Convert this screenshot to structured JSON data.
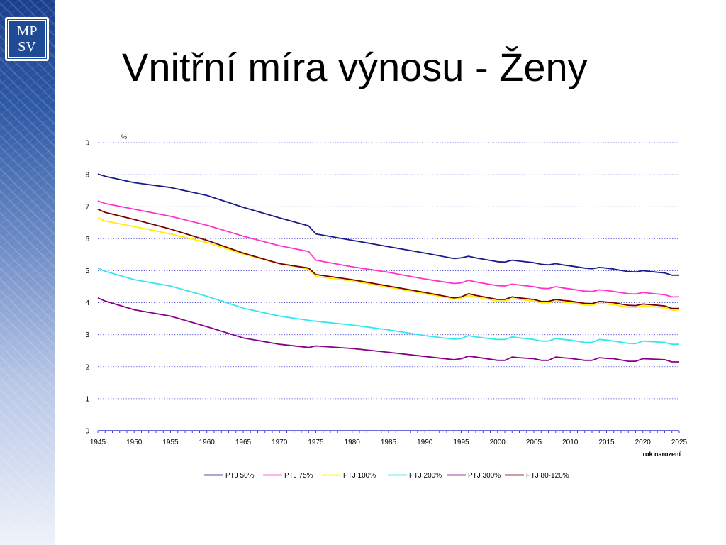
{
  "slide": {
    "title": "Vnitřní míra výnosu - Ženy",
    "logo": {
      "line1": "MP",
      "line2": "SV"
    }
  },
  "colors": {
    "sidebar_dark": "#1b3f8c",
    "gridline": "#3b3bd1"
  },
  "chart_data": {
    "type": "line",
    "ylabel": "%",
    "xlabel": "rok narození",
    "ylim": [
      0,
      9
    ],
    "yticks": [
      0,
      1,
      2,
      3,
      4,
      5,
      6,
      7,
      8,
      9
    ],
    "xlim": [
      1945,
      2025
    ],
    "xticks": [
      1945,
      1950,
      1955,
      1960,
      1965,
      1970,
      1975,
      1980,
      1985,
      1990,
      1995,
      2000,
      2005,
      2010,
      2015,
      2020,
      2025
    ],
    "grid": "horizontal-dotted",
    "legend_position": "bottom",
    "series": [
      {
        "name": "PTJ 50%",
        "color": "#1a1a8a",
        "points": [
          [
            1945,
            8.02
          ],
          [
            1946,
            7.95
          ],
          [
            1950,
            7.75
          ],
          [
            1955,
            7.6
          ],
          [
            1960,
            7.35
          ],
          [
            1965,
            6.98
          ],
          [
            1970,
            6.65
          ],
          [
            1974,
            6.4
          ],
          [
            1975,
            6.15
          ],
          [
            1980,
            5.95
          ],
          [
            1985,
            5.75
          ],
          [
            1990,
            5.55
          ],
          [
            1994,
            5.38
          ],
          [
            1995,
            5.4
          ],
          [
            1996,
            5.45
          ],
          [
            1997,
            5.4
          ],
          [
            2000,
            5.28
          ],
          [
            2001,
            5.27
          ],
          [
            2002,
            5.33
          ],
          [
            2003,
            5.3
          ],
          [
            2005,
            5.25
          ],
          [
            2006,
            5.2
          ],
          [
            2007,
            5.18
          ],
          [
            2008,
            5.22
          ],
          [
            2009,
            5.18
          ],
          [
            2010,
            5.15
          ],
          [
            2012,
            5.08
          ],
          [
            2013,
            5.06
          ],
          [
            2014,
            5.1
          ],
          [
            2015,
            5.08
          ],
          [
            2016,
            5.05
          ],
          [
            2018,
            4.97
          ],
          [
            2019,
            4.96
          ],
          [
            2020,
            5.0
          ],
          [
            2022,
            4.95
          ],
          [
            2023,
            4.93
          ],
          [
            2024,
            4.86
          ],
          [
            2025,
            4.86
          ]
        ]
      },
      {
        "name": "PTJ 75%",
        "color": "#ff33cc",
        "points": [
          [
            1945,
            7.18
          ],
          [
            1946,
            7.1
          ],
          [
            1950,
            6.92
          ],
          [
            1955,
            6.7
          ],
          [
            1960,
            6.42
          ],
          [
            1965,
            6.08
          ],
          [
            1970,
            5.78
          ],
          [
            1974,
            5.6
          ],
          [
            1975,
            5.33
          ],
          [
            1980,
            5.12
          ],
          [
            1985,
            4.95
          ],
          [
            1990,
            4.74
          ],
          [
            1994,
            4.6
          ],
          [
            1995,
            4.62
          ],
          [
            1996,
            4.7
          ],
          [
            1997,
            4.65
          ],
          [
            2000,
            4.53
          ],
          [
            2001,
            4.52
          ],
          [
            2002,
            4.58
          ],
          [
            2003,
            4.55
          ],
          [
            2005,
            4.5
          ],
          [
            2006,
            4.45
          ],
          [
            2007,
            4.44
          ],
          [
            2008,
            4.5
          ],
          [
            2009,
            4.46
          ],
          [
            2010,
            4.43
          ],
          [
            2012,
            4.36
          ],
          [
            2013,
            4.35
          ],
          [
            2014,
            4.4
          ],
          [
            2015,
            4.38
          ],
          [
            2016,
            4.35
          ],
          [
            2018,
            4.28
          ],
          [
            2019,
            4.27
          ],
          [
            2020,
            4.32
          ],
          [
            2022,
            4.27
          ],
          [
            2023,
            4.25
          ],
          [
            2024,
            4.18
          ],
          [
            2025,
            4.18
          ]
        ]
      },
      {
        "name": "PTJ 100%",
        "color": "#ffee00",
        "points": [
          [
            1945,
            6.65
          ],
          [
            1946,
            6.55
          ],
          [
            1950,
            6.38
          ],
          [
            1955,
            6.15
          ],
          [
            1960,
            5.88
          ],
          [
            1965,
            5.52
          ],
          [
            1970,
            5.22
          ],
          [
            1974,
            5.05
          ],
          [
            1975,
            4.82
          ],
          [
            1980,
            4.68
          ],
          [
            1985,
            4.48
          ],
          [
            1990,
            4.28
          ],
          [
            1994,
            4.12
          ],
          [
            1995,
            4.15
          ],
          [
            1996,
            4.22
          ],
          [
            1997,
            4.18
          ],
          [
            2000,
            4.05
          ],
          [
            2001,
            4.05
          ],
          [
            2002,
            4.12
          ],
          [
            2003,
            4.1
          ],
          [
            2005,
            4.05
          ],
          [
            2006,
            4.0
          ],
          [
            2007,
            3.99
          ],
          [
            2008,
            4.05
          ],
          [
            2009,
            4.02
          ],
          [
            2010,
            4.0
          ],
          [
            2012,
            3.93
          ],
          [
            2013,
            3.92
          ],
          [
            2014,
            3.98
          ],
          [
            2015,
            3.96
          ],
          [
            2016,
            3.94
          ],
          [
            2018,
            3.86
          ],
          [
            2019,
            3.85
          ],
          [
            2020,
            3.9
          ],
          [
            2022,
            3.86
          ],
          [
            2023,
            3.84
          ],
          [
            2024,
            3.77
          ],
          [
            2025,
            3.77
          ]
        ]
      },
      {
        "name": "PTJ 200%",
        "color": "#33e6f0",
        "points": [
          [
            1945,
            5.08
          ],
          [
            1946,
            4.98
          ],
          [
            1950,
            4.72
          ],
          [
            1955,
            4.52
          ],
          [
            1960,
            4.2
          ],
          [
            1965,
            3.83
          ],
          [
            1970,
            3.58
          ],
          [
            1974,
            3.45
          ],
          [
            1975,
            3.42
          ],
          [
            1980,
            3.3
          ],
          [
            1985,
            3.15
          ],
          [
            1990,
            2.97
          ],
          [
            1994,
            2.86
          ],
          [
            1995,
            2.88
          ],
          [
            1996,
            2.97
          ],
          [
            1997,
            2.93
          ],
          [
            2000,
            2.85
          ],
          [
            2001,
            2.85
          ],
          [
            2002,
            2.93
          ],
          [
            2003,
            2.9
          ],
          [
            2005,
            2.85
          ],
          [
            2006,
            2.8
          ],
          [
            2007,
            2.8
          ],
          [
            2008,
            2.88
          ],
          [
            2009,
            2.85
          ],
          [
            2010,
            2.83
          ],
          [
            2012,
            2.76
          ],
          [
            2013,
            2.76
          ],
          [
            2014,
            2.85
          ],
          [
            2015,
            2.83
          ],
          [
            2016,
            2.8
          ],
          [
            2018,
            2.73
          ],
          [
            2019,
            2.72
          ],
          [
            2020,
            2.8
          ],
          [
            2022,
            2.77
          ],
          [
            2023,
            2.76
          ],
          [
            2024,
            2.7
          ],
          [
            2025,
            2.7
          ]
        ]
      },
      {
        "name": "PTJ 300%",
        "color": "#880088",
        "points": [
          [
            1945,
            4.15
          ],
          [
            1946,
            4.05
          ],
          [
            1950,
            3.78
          ],
          [
            1955,
            3.58
          ],
          [
            1960,
            3.25
          ],
          [
            1965,
            2.9
          ],
          [
            1970,
            2.7
          ],
          [
            1974,
            2.6
          ],
          [
            1975,
            2.65
          ],
          [
            1980,
            2.57
          ],
          [
            1985,
            2.45
          ],
          [
            1990,
            2.32
          ],
          [
            1994,
            2.22
          ],
          [
            1995,
            2.25
          ],
          [
            1996,
            2.33
          ],
          [
            1997,
            2.3
          ],
          [
            2000,
            2.2
          ],
          [
            2001,
            2.2
          ],
          [
            2002,
            2.3
          ],
          [
            2003,
            2.28
          ],
          [
            2005,
            2.25
          ],
          [
            2006,
            2.2
          ],
          [
            2007,
            2.2
          ],
          [
            2008,
            2.3
          ],
          [
            2009,
            2.28
          ],
          [
            2010,
            2.26
          ],
          [
            2012,
            2.2
          ],
          [
            2013,
            2.2
          ],
          [
            2014,
            2.28
          ],
          [
            2015,
            2.26
          ],
          [
            2016,
            2.25
          ],
          [
            2018,
            2.17
          ],
          [
            2019,
            2.17
          ],
          [
            2020,
            2.25
          ],
          [
            2022,
            2.23
          ],
          [
            2023,
            2.22
          ],
          [
            2024,
            2.15
          ],
          [
            2025,
            2.15
          ]
        ]
      },
      {
        "name": "PTJ 80-120%",
        "color": "#7a0000",
        "points": [
          [
            1945,
            6.92
          ],
          [
            1946,
            6.82
          ],
          [
            1950,
            6.6
          ],
          [
            1955,
            6.3
          ],
          [
            1960,
            5.95
          ],
          [
            1965,
            5.55
          ],
          [
            1970,
            5.22
          ],
          [
            1974,
            5.08
          ],
          [
            1975,
            4.88
          ],
          [
            1980,
            4.72
          ],
          [
            1985,
            4.52
          ],
          [
            1990,
            4.32
          ],
          [
            1994,
            4.15
          ],
          [
            1995,
            4.18
          ],
          [
            1996,
            4.28
          ],
          [
            1997,
            4.23
          ],
          [
            2000,
            4.1
          ],
          [
            2001,
            4.1
          ],
          [
            2002,
            4.18
          ],
          [
            2003,
            4.15
          ],
          [
            2005,
            4.1
          ],
          [
            2006,
            4.04
          ],
          [
            2007,
            4.04
          ],
          [
            2008,
            4.1
          ],
          [
            2009,
            4.07
          ],
          [
            2010,
            4.05
          ],
          [
            2012,
            3.98
          ],
          [
            2013,
            3.97
          ],
          [
            2014,
            4.04
          ],
          [
            2015,
            4.02
          ],
          [
            2016,
            4.0
          ],
          [
            2018,
            3.92
          ],
          [
            2019,
            3.91
          ],
          [
            2020,
            3.96
          ],
          [
            2022,
            3.92
          ],
          [
            2023,
            3.9
          ],
          [
            2024,
            3.82
          ],
          [
            2025,
            3.82
          ]
        ]
      }
    ]
  }
}
